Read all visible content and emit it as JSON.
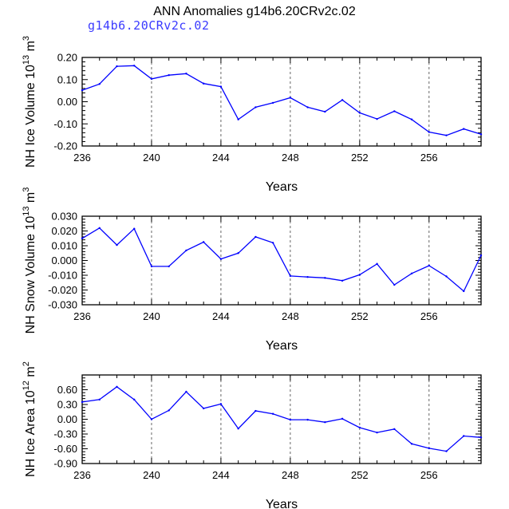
{
  "header": {
    "title": "ANN Anomalies g14b6.20CRv2c.02",
    "subtitle": "g14b6.20CRv2c.02"
  },
  "colors": {
    "line": "#0000ff",
    "axis": "#000000",
    "grid": "#666666",
    "subtitle": "#3b3bff"
  },
  "chart_data": [
    {
      "type": "line",
      "title": "",
      "xlabel": "Years",
      "ylabel_main": "NH Ice Volume 10",
      "ylabel_exp": "13",
      "ylabel_unit": "m",
      "ylabel_unit_exp": "3",
      "xlim": [
        236,
        259
      ],
      "ylim": [
        -0.2,
        0.2
      ],
      "xticks": [
        236,
        240,
        244,
        248,
        252,
        256
      ],
      "yticks": [
        0.2,
        0.1,
        0.0,
        -0.1,
        -0.2
      ],
      "ytick_labels": [
        "0.20",
        "0.10",
        "0.00",
        "-0.10",
        "-0.20"
      ],
      "grid": "vertical dashed at 240, 244, 248, 252, 256",
      "x": [
        236,
        237,
        238,
        239,
        240,
        241,
        242,
        243,
        244,
        245,
        246,
        247,
        248,
        249,
        250,
        251,
        252,
        253,
        254,
        255,
        256,
        257,
        258,
        259
      ],
      "values": [
        0.052,
        0.08,
        0.16,
        0.163,
        0.103,
        0.12,
        0.127,
        0.082,
        0.068,
        -0.08,
        -0.025,
        -0.005,
        0.018,
        -0.025,
        -0.045,
        0.008,
        -0.05,
        -0.078,
        -0.043,
        -0.08,
        -0.137,
        -0.152,
        -0.123,
        -0.147
      ]
    },
    {
      "type": "line",
      "title": "",
      "xlabel": "Years",
      "ylabel_main": "NH Snow Volume 10",
      "ylabel_exp": "13",
      "ylabel_unit": "m",
      "ylabel_unit_exp": "3",
      "xlim": [
        236,
        259
      ],
      "ylim": [
        -0.03,
        0.03
      ],
      "xticks": [
        236,
        240,
        244,
        248,
        252,
        256
      ],
      "yticks": [
        0.03,
        0.02,
        0.01,
        0.0,
        -0.01,
        -0.02,
        -0.03
      ],
      "ytick_labels": [
        "0.030",
        "0.020",
        "0.010",
        "0.000",
        "-0.010",
        "-0.020",
        "-0.030"
      ],
      "grid": "vertical dashed at 240, 244, 248, 252, 256",
      "x": [
        236,
        237,
        238,
        239,
        240,
        241,
        242,
        243,
        244,
        245,
        246,
        247,
        248,
        249,
        250,
        251,
        252,
        253,
        254,
        255,
        256,
        257,
        258,
        259
      ],
      "values": [
        0.015,
        0.022,
        0.0105,
        0.0215,
        -0.004,
        -0.004,
        0.0068,
        0.0125,
        0.001,
        0.005,
        0.016,
        0.012,
        -0.0105,
        -0.0112,
        -0.0118,
        -0.0137,
        -0.0097,
        -0.0023,
        -0.0165,
        -0.0088,
        -0.0035,
        -0.0108,
        -0.0208,
        0.0035
      ]
    },
    {
      "type": "line",
      "title": "",
      "xlabel": "Years",
      "ylabel_main": "NH Ice Area 10",
      "ylabel_exp": "12",
      "ylabel_unit": "m",
      "ylabel_unit_exp": "2",
      "xlim": [
        236,
        259
      ],
      "ylim": [
        -0.9,
        0.9
      ],
      "xticks": [
        236,
        240,
        244,
        248,
        252,
        256
      ],
      "yticks": [
        0.6,
        0.3,
        0.0,
        -0.3,
        -0.6,
        -0.9
      ],
      "ytick_labels": [
        "0.60",
        "0.30",
        "0.00",
        "-0.30",
        "-0.60",
        "-0.90"
      ],
      "grid": "vertical dashed at 240, 244, 248, 252, 256",
      "x": [
        236,
        237,
        238,
        239,
        240,
        241,
        242,
        243,
        244,
        245,
        246,
        247,
        248,
        249,
        250,
        251,
        252,
        253,
        254,
        255,
        256,
        257,
        258,
        259
      ],
      "values": [
        0.35,
        0.4,
        0.66,
        0.4,
        0.0,
        0.18,
        0.56,
        0.22,
        0.31,
        -0.19,
        0.17,
        0.11,
        -0.01,
        -0.01,
        -0.06,
        0.01,
        -0.17,
        -0.27,
        -0.2,
        -0.5,
        -0.59,
        -0.65,
        -0.34,
        -0.37
      ]
    }
  ]
}
